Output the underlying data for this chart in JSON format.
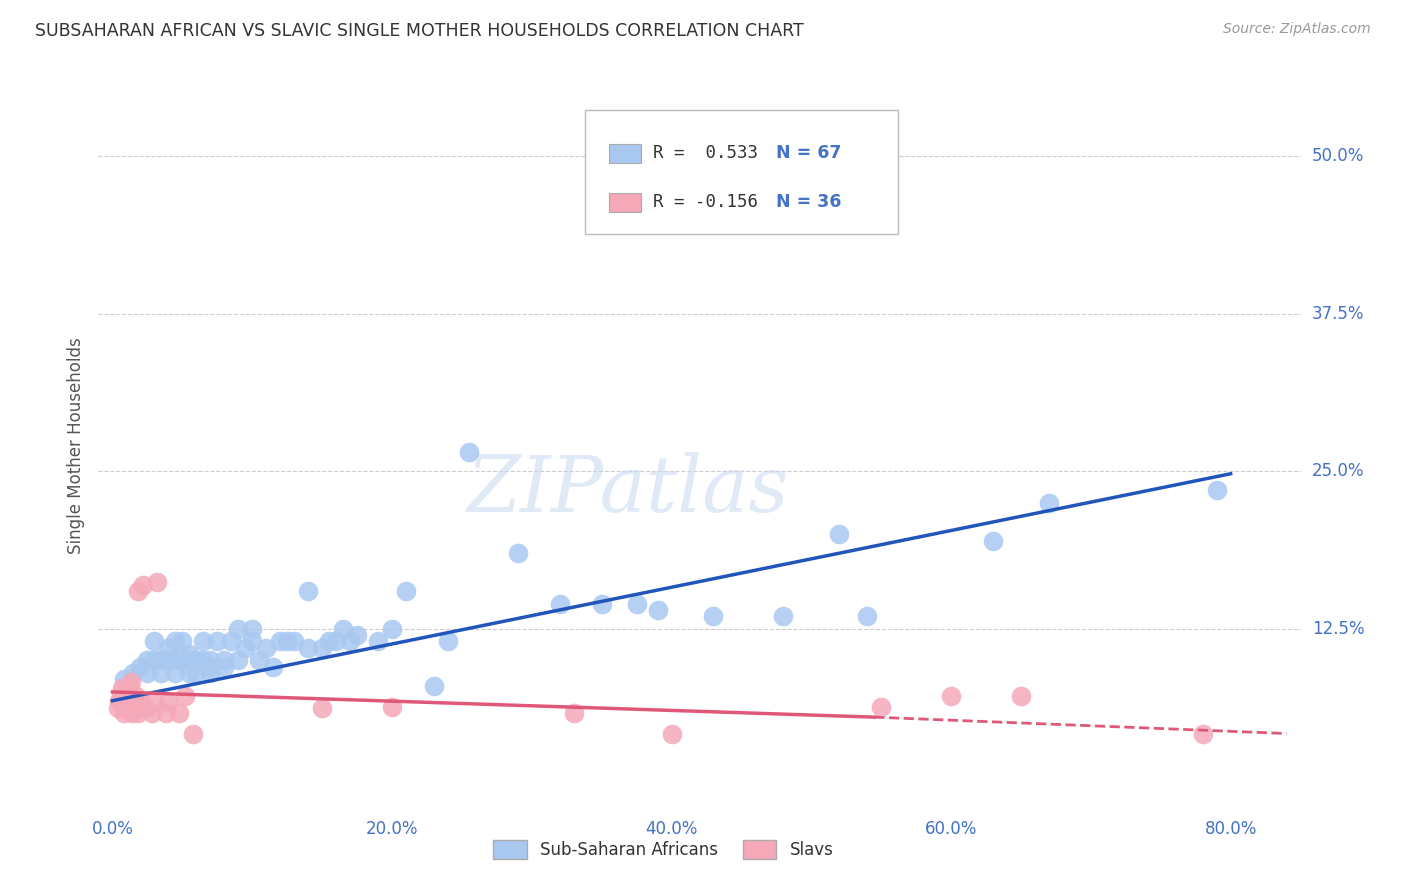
{
  "title": "SUBSAHARAN AFRICAN VS SLAVIC SINGLE MOTHER HOUSEHOLDS CORRELATION CHART",
  "source": "Source: ZipAtlas.com",
  "ylabel": "Single Mother Households",
  "xlim": [
    -0.01,
    0.85
  ],
  "ylim": [
    -0.02,
    0.56
  ],
  "watermark": "ZIPatlas",
  "legend_R_blue": "R =  0.533",
  "legend_N_blue": "N = 67",
  "legend_R_pink": "R = -0.156",
  "legend_N_pink": "N = 36",
  "blue_color": "#A8C8F0",
  "pink_color": "#F5A8B8",
  "blue_line_color": "#2255BB",
  "pink_line_color": "#E05878",
  "blue_scatter": [
    [
      0.008,
      0.085
    ],
    [
      0.015,
      0.09
    ],
    [
      0.02,
      0.095
    ],
    [
      0.025,
      0.09
    ],
    [
      0.025,
      0.1
    ],
    [
      0.03,
      0.1
    ],
    [
      0.03,
      0.115
    ],
    [
      0.035,
      0.09
    ],
    [
      0.035,
      0.1
    ],
    [
      0.04,
      0.1
    ],
    [
      0.04,
      0.11
    ],
    [
      0.045,
      0.09
    ],
    [
      0.045,
      0.1
    ],
    [
      0.045,
      0.115
    ],
    [
      0.05,
      0.1
    ],
    [
      0.05,
      0.115
    ],
    [
      0.055,
      0.09
    ],
    [
      0.055,
      0.1
    ],
    [
      0.055,
      0.105
    ],
    [
      0.06,
      0.09
    ],
    [
      0.06,
      0.1
    ],
    [
      0.065,
      0.1
    ],
    [
      0.065,
      0.115
    ],
    [
      0.07,
      0.09
    ],
    [
      0.07,
      0.095
    ],
    [
      0.07,
      0.1
    ],
    [
      0.075,
      0.115
    ],
    [
      0.08,
      0.095
    ],
    [
      0.08,
      0.1
    ],
    [
      0.085,
      0.115
    ],
    [
      0.09,
      0.125
    ],
    [
      0.09,
      0.1
    ],
    [
      0.095,
      0.11
    ],
    [
      0.1,
      0.115
    ],
    [
      0.1,
      0.125
    ],
    [
      0.105,
      0.1
    ],
    [
      0.11,
      0.11
    ],
    [
      0.115,
      0.095
    ],
    [
      0.12,
      0.115
    ],
    [
      0.125,
      0.115
    ],
    [
      0.13,
      0.115
    ],
    [
      0.14,
      0.11
    ],
    [
      0.14,
      0.155
    ],
    [
      0.15,
      0.11
    ],
    [
      0.155,
      0.115
    ],
    [
      0.16,
      0.115
    ],
    [
      0.165,
      0.125
    ],
    [
      0.17,
      0.115
    ],
    [
      0.175,
      0.12
    ],
    [
      0.19,
      0.115
    ],
    [
      0.2,
      0.125
    ],
    [
      0.21,
      0.155
    ],
    [
      0.23,
      0.08
    ],
    [
      0.24,
      0.115
    ],
    [
      0.255,
      0.265
    ],
    [
      0.29,
      0.185
    ],
    [
      0.32,
      0.145
    ],
    [
      0.35,
      0.145
    ],
    [
      0.375,
      0.145
    ],
    [
      0.39,
      0.14
    ],
    [
      0.43,
      0.135
    ],
    [
      0.48,
      0.135
    ],
    [
      0.52,
      0.2
    ],
    [
      0.54,
      0.135
    ],
    [
      0.63,
      0.195
    ],
    [
      0.67,
      0.225
    ],
    [
      0.79,
      0.235
    ]
  ],
  "pink_scatter": [
    [
      0.004,
      0.062
    ],
    [
      0.005,
      0.068
    ],
    [
      0.006,
      0.073
    ],
    [
      0.007,
      0.078
    ],
    [
      0.008,
      0.058
    ],
    [
      0.009,
      0.063
    ],
    [
      0.01,
      0.068
    ],
    [
      0.011,
      0.073
    ],
    [
      0.012,
      0.078
    ],
    [
      0.013,
      0.083
    ],
    [
      0.014,
      0.058
    ],
    [
      0.015,
      0.062
    ],
    [
      0.016,
      0.067
    ],
    [
      0.017,
      0.072
    ],
    [
      0.018,
      0.058
    ],
    [
      0.019,
      0.063
    ],
    [
      0.02,
      0.068
    ],
    [
      0.018,
      0.155
    ],
    [
      0.022,
      0.16
    ],
    [
      0.024,
      0.062
    ],
    [
      0.028,
      0.058
    ],
    [
      0.03,
      0.067
    ],
    [
      0.032,
      0.162
    ],
    [
      0.038,
      0.058
    ],
    [
      0.04,
      0.067
    ],
    [
      0.048,
      0.058
    ],
    [
      0.052,
      0.072
    ],
    [
      0.058,
      0.042
    ],
    [
      0.15,
      0.062
    ],
    [
      0.2,
      0.063
    ],
    [
      0.33,
      0.058
    ],
    [
      0.4,
      0.042
    ],
    [
      0.55,
      0.063
    ],
    [
      0.6,
      0.072
    ],
    [
      0.65,
      0.072
    ],
    [
      0.78,
      0.042
    ]
  ],
  "blue_line_pts": [
    [
      0.0,
      0.068
    ],
    [
      0.8,
      0.248
    ]
  ],
  "pink_line_solid_pts": [
    [
      0.0,
      0.075
    ],
    [
      0.545,
      0.055
    ]
  ],
  "pink_line_dashed_pts": [
    [
      0.545,
      0.055
    ],
    [
      0.84,
      0.042
    ]
  ],
  "grid_color": "#CCCCCC",
  "background_color": "#FFFFFF",
  "xtick_vals": [
    0.0,
    0.2,
    0.4,
    0.6,
    0.8
  ],
  "xtick_labels": [
    "0.0%",
    "20.0%",
    "40.0%",
    "60.0%",
    "80.0%"
  ],
  "ytick_vals": [
    0.125,
    0.25,
    0.375,
    0.5
  ],
  "ytick_labels": [
    "12.5%",
    "25.0%",
    "37.5%",
    "50.0%"
  ],
  "legend_items": [
    "Sub-Saharan Africans",
    "Slavs"
  ]
}
